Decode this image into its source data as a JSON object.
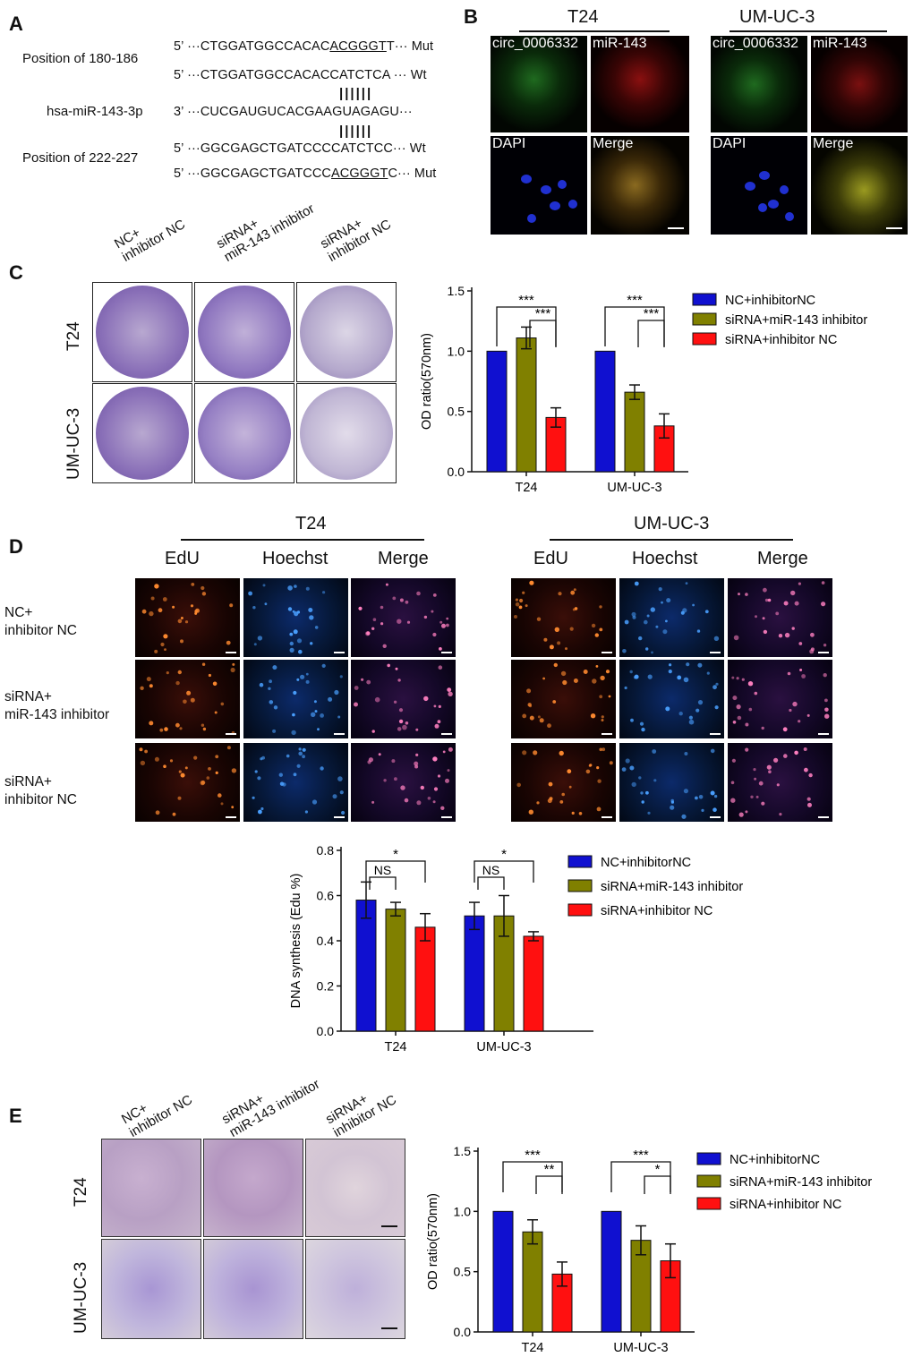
{
  "panels": {
    "A": "A",
    "B": "B",
    "C": "C",
    "D": "D",
    "E": "E"
  },
  "panelA": {
    "pos1_label": "Position of 180-186",
    "pos2_label": "Position of 222-227",
    "mir_label": "hsa-miR-143-3p",
    "seq_mut1_prefix": "5’ ···CTGGATGGCCACAC",
    "seq_mut1_site": "ACGGGT",
    "seq_mut1_suffix": "T··· Mut",
    "seq_wt1": "5’ ···CTGGATGGCCACACCATCTCA ··· Wt",
    "seq_mir": "3’ ···CUCGAUGUCACGAAGUAGAGU···",
    "seq_wt2": "5’ ···GGCGAGCTGATCCCCATCTCC··· Wt",
    "seq_mut2_prefix": "5’ ···GGCGAGCTGATCCC",
    "seq_mut2_site": "ACGGGT",
    "seq_mut2_suffix": "C··· Mut",
    "pairing": "||||||"
  },
  "panelB": {
    "group1": "T24",
    "group2": "UM-UC-3",
    "labels": [
      "circ_0006332",
      "miR-143",
      "DAPI",
      "Merge"
    ]
  },
  "panelC": {
    "col_labels": [
      "NC+\ninhibitor NC",
      "siRNA+\nmiR-143 inhibitor",
      "siRNA+\ninhibitor NC"
    ],
    "row_labels": [
      "T24",
      "UM-UC-3"
    ]
  },
  "panelD": {
    "group1": "T24",
    "group2": "UM-UC-3",
    "col_labels": [
      "EdU",
      "Hoechst",
      "Merge"
    ],
    "row_labels": [
      "NC+\ninhibitor NC",
      "siRNA+\nmiR-143 inhibitor",
      "siRNA+\ninhibitor NC"
    ]
  },
  "panelE": {
    "col_labels": [
      "NC+\ninhibitor NC",
      "siRNA+\nmiR-143 inhibitor",
      "siRNA+\ninhibitor NC"
    ],
    "row_labels": [
      "T24",
      "UM-UC-3"
    ]
  },
  "colors": {
    "blue": "#1010d0",
    "olive": "#808000",
    "red": "#ff1010"
  },
  "chart_data": [
    {
      "id": "C",
      "type": "bar",
      "ylabel": "OD ratio(570nm)",
      "ylim": [
        0,
        1.5
      ],
      "yticks": [
        "0.0",
        "0.5",
        "1.0",
        "1.5"
      ],
      "tick_values": [
        0,
        0.5,
        1.0,
        1.5
      ],
      "categories": [
        "T24",
        "UM-UC-3"
      ],
      "series": [
        {
          "name": "NC+inhibitorNC",
          "values": [
            1.0,
            1.0
          ],
          "errors": [
            0,
            0
          ]
        },
        {
          "name": "siRNA+miR-143 inhibitor",
          "values": [
            1.11,
            0.66
          ],
          "errors": [
            0.09,
            0.06
          ]
        },
        {
          "name": "siRNA+inhibitor NC",
          "values": [
            0.45,
            0.38
          ],
          "errors": [
            0.08,
            0.1
          ]
        }
      ],
      "significance": [
        {
          "category": 0,
          "pair": [
            0,
            2
          ],
          "label": "***"
        },
        {
          "category": 0,
          "pair": [
            1,
            2
          ],
          "label": "***"
        },
        {
          "category": 1,
          "pair": [
            0,
            2
          ],
          "label": "***"
        },
        {
          "category": 1,
          "pair": [
            1,
            2
          ],
          "label": "***"
        }
      ],
      "legend": "right"
    },
    {
      "id": "D",
      "type": "bar",
      "ylabel": "DNA synthesis (Edu %)",
      "ylim": [
        0,
        0.8
      ],
      "yticks": [
        "0.0",
        "0.2",
        "0.4",
        "0.6",
        "0.8"
      ],
      "tick_values": [
        0,
        0.2,
        0.4,
        0.6,
        0.8
      ],
      "categories": [
        "T24",
        "UM-UC-3"
      ],
      "series": [
        {
          "name": "NC+inhibitorNC",
          "values": [
            0.58,
            0.51
          ],
          "errors": [
            0.08,
            0.06
          ]
        },
        {
          "name": "siRNA+miR-143 inhibitor",
          "values": [
            0.54,
            0.51
          ],
          "errors": [
            0.03,
            0.09
          ]
        },
        {
          "name": "siRNA+inhibitor NC",
          "values": [
            0.46,
            0.42
          ],
          "errors": [
            0.06,
            0.02
          ]
        }
      ],
      "significance": [
        {
          "category": 0,
          "pair": [
            0,
            2
          ],
          "label": "*"
        },
        {
          "category": 0,
          "pair": [
            0,
            1
          ],
          "label": "NS"
        },
        {
          "category": 1,
          "pair": [
            0,
            2
          ],
          "label": "*"
        },
        {
          "category": 1,
          "pair": [
            0,
            1
          ],
          "label": "NS"
        }
      ],
      "legend": "right"
    },
    {
      "id": "E",
      "type": "bar",
      "ylabel": "OD ratio(570nm)",
      "ylim": [
        0,
        1.5
      ],
      "yticks": [
        "0.0",
        "0.5",
        "1.0",
        "1.5"
      ],
      "tick_values": [
        0,
        0.5,
        1.0,
        1.5
      ],
      "categories": [
        "T24",
        "UM-UC-3"
      ],
      "series": [
        {
          "name": "NC+inhibitorNC",
          "values": [
            1.0,
            1.0
          ],
          "errors": [
            0,
            0
          ]
        },
        {
          "name": "siRNA+miR-143 inhibitor",
          "values": [
            0.83,
            0.76
          ],
          "errors": [
            0.1,
            0.12
          ]
        },
        {
          "name": "siRNA+inhibitor NC",
          "values": [
            0.48,
            0.59
          ],
          "errors": [
            0.1,
            0.14
          ]
        }
      ],
      "significance": [
        {
          "category": 0,
          "pair": [
            0,
            2
          ],
          "label": "***"
        },
        {
          "category": 0,
          "pair": [
            1,
            2
          ],
          "label": "**"
        },
        {
          "category": 1,
          "pair": [
            0,
            2
          ],
          "label": "***"
        },
        {
          "category": 1,
          "pair": [
            1,
            2
          ],
          "label": "*"
        }
      ],
      "legend": "right"
    }
  ]
}
